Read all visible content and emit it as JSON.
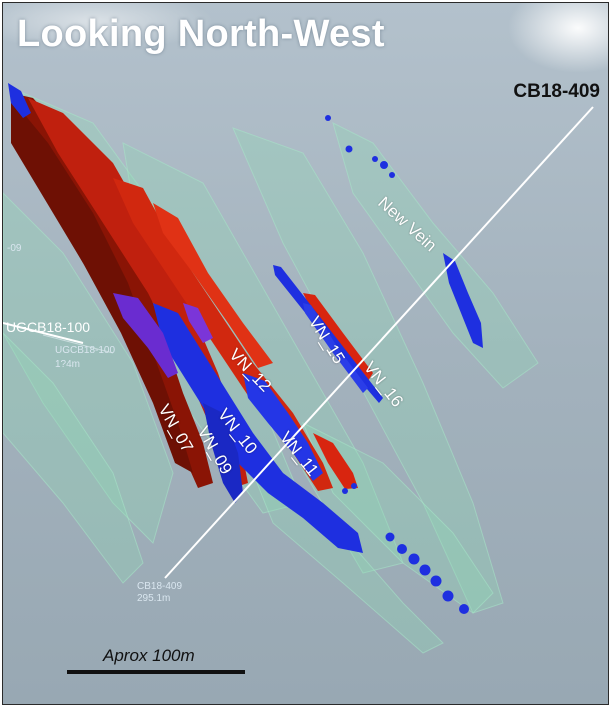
{
  "view": {
    "title": "Looking North-West"
  },
  "drillholes": {
    "main": {
      "label": "CB18-409",
      "collar_label": "CB18-409",
      "depth_label": "295.1m"
    },
    "secondary": {
      "label": "UGCB18-100",
      "faint_label": "UGCB18-100",
      "faint_depth": "1?4m",
      "left_edge_fragment": "-09"
    }
  },
  "veins": [
    "VN_07",
    "VN_09",
    "VN_10",
    "VN_11",
    "VN_12",
    "VN_15",
    "VN_16",
    "New Vein"
  ],
  "scale": {
    "label": "Aprox 100m"
  },
  "colors": {
    "sky_top": "#aab9c6",
    "sky_bottom": "#96a6b2",
    "envelope_green": "#8fd9b4",
    "vein_red": "#c0200e",
    "vein_dark_red": "#8a1405",
    "vein_blue": "#1e2fe0",
    "vein_purple": "#6a2cd0",
    "drillhole_line": "#ffffff"
  }
}
